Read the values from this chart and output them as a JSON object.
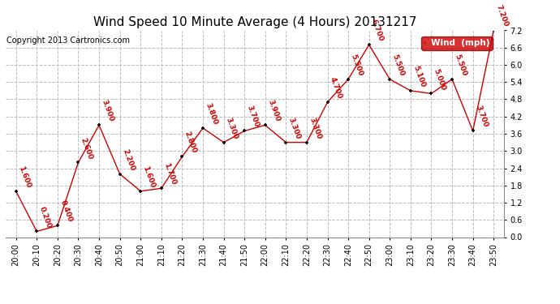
{
  "title": "Wind Speed 10 Minute Average (4 Hours) 20131217",
  "copyright": "Copyright 2013 Cartronics.com",
  "legend_label": "Wind  (mph)",
  "x_labels": [
    "20:00",
    "20:10",
    "20:20",
    "20:30",
    "20:40",
    "20:50",
    "21:00",
    "21:10",
    "21:20",
    "21:30",
    "21:40",
    "21:50",
    "22:00",
    "22:10",
    "22:20",
    "22:30",
    "22:40",
    "22:50",
    "23:00",
    "23:10",
    "23:20",
    "23:30",
    "23:40",
    "23:50"
  ],
  "y_values": [
    1.6,
    0.2,
    0.4,
    2.6,
    3.9,
    2.2,
    1.6,
    1.7,
    2.8,
    3.8,
    3.3,
    3.7,
    3.9,
    3.3,
    3.3,
    4.7,
    5.5,
    6.7,
    5.5,
    5.1,
    5.0,
    5.5,
    3.7,
    7.2
  ],
  "value_labels": [
    "1.600",
    "0.200",
    "0.400",
    "2.600",
    "3.900",
    "2.200",
    "1.600",
    "1.700",
    "2.800",
    "3.800",
    "3.300",
    "3.700",
    "3.900",
    "3.300",
    "3.300",
    "4.700",
    "5.500",
    "6.700",
    "5.500",
    "5.100",
    "5.000",
    "5.500",
    "3.700",
    "7.200"
  ],
  "line_color": "#cc0000",
  "marker_color": "#000000",
  "label_color": "#cc0000",
  "grid_color": "#bbbbbb",
  "background_color": "#ffffff",
  "ylim": [
    0.0,
    7.2
  ],
  "yticks": [
    0.0,
    0.6,
    1.2,
    1.8,
    2.4,
    3.0,
    3.6,
    4.2,
    4.8,
    5.4,
    6.0,
    6.6,
    7.2
  ],
  "legend_bg": "#cc0000",
  "legend_text_color": "#ffffff",
  "title_fontsize": 11,
  "label_fontsize": 6.5,
  "axis_fontsize": 7,
  "copyright_fontsize": 7
}
